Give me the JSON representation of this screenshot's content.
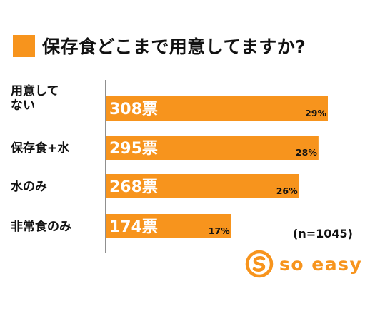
{
  "title": "保存食どこまで用意してますか?",
  "sample_note": "(n=1045)",
  "logo_text": "so easy",
  "colors": {
    "accent": "#f7941d",
    "axis": "#555555",
    "text": "#111111"
  },
  "chart_data": {
    "type": "bar",
    "orientation": "horizontal",
    "title": "保存食どこまで用意してますか?",
    "categories": [
      "用意してない",
      "保存食+水",
      "水のみ",
      "非常食のみ"
    ],
    "category_display": [
      [
        "用意して",
        "ない"
      ],
      [
        "保存食+水"
      ],
      [
        "水のみ"
      ],
      [
        "非常食のみ"
      ]
    ],
    "values": [
      308,
      295,
      268,
      174
    ],
    "value_labels": [
      "308票",
      "295票",
      "268票",
      "174票"
    ],
    "percent_labels": [
      "29%",
      "28%",
      "26%",
      "17%"
    ],
    "unit": "票",
    "xlim": [
      0,
      308
    ],
    "grid": false,
    "legend": "none"
  }
}
